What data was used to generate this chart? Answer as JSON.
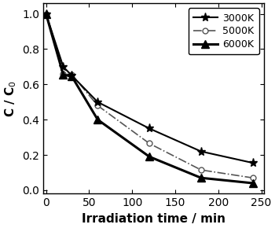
{
  "series": {
    "3000K": {
      "x": [
        0,
        20,
        30,
        60,
        120,
        180,
        240
      ],
      "y": [
        1.0,
        0.7,
        0.65,
        0.5,
        0.35,
        0.22,
        0.155
      ],
      "color": "#000000",
      "linestyle": "-",
      "marker": "*",
      "markersize": 8,
      "linewidth": 1.5
    },
    "5000K": {
      "x": [
        0,
        20,
        30,
        60,
        120,
        180,
        240
      ],
      "y": [
        1.0,
        0.66,
        0.655,
        0.48,
        0.265,
        0.115,
        0.07
      ],
      "color": "#555555",
      "linestyle": "-.",
      "marker": "o",
      "markersize": 5,
      "linewidth": 1.2
    },
    "6000K": {
      "x": [
        0,
        20,
        30,
        60,
        120,
        180,
        240
      ],
      "y": [
        1.0,
        0.655,
        0.645,
        0.4,
        0.19,
        0.07,
        0.04
      ],
      "color": "#000000",
      "linestyle": "-",
      "marker": "^",
      "markersize": 7,
      "linewidth": 2.2
    }
  },
  "xlabel": "Irradiation time / min",
  "ylabel": "C / C$_0$",
  "xlim": [
    -3,
    253
  ],
  "ylim": [
    -0.02,
    1.06
  ],
  "xticks": [
    0,
    50,
    100,
    150,
    200,
    250
  ],
  "yticks": [
    0.0,
    0.2,
    0.4,
    0.6,
    0.8,
    1.0
  ],
  "legend_loc": "upper right",
  "legend_fontsize": 9,
  "xlabel_fontsize": 11,
  "ylabel_fontsize": 11,
  "tick_fontsize": 10
}
